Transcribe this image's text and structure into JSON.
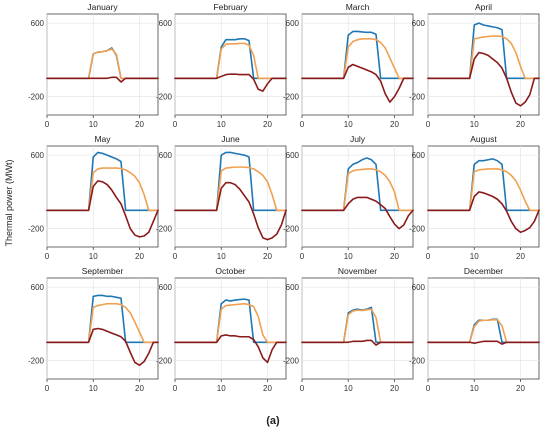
{
  "chart_data": {
    "type": "line",
    "ylabel": "Thermal power (MWt)",
    "caption": "(a)",
    "xlim": [
      0,
      24
    ],
    "ylim": [
      -400,
      700
    ],
    "x_ticks": [
      0,
      10,
      20
    ],
    "y_ticks_labeled": [
      600,
      -200
    ],
    "series_colors": [
      "#1f77b4",
      "#f0a050",
      "#8b1a1a"
    ],
    "hours": [
      0,
      1,
      2,
      3,
      4,
      5,
      6,
      7,
      8,
      9,
      10,
      11,
      12,
      13,
      14,
      15,
      16,
      17,
      18,
      19,
      20,
      21,
      22,
      23,
      24
    ],
    "panels": [
      {
        "month": "January",
        "series": [
          {
            "values": [
              0,
              0,
              0,
              0,
              0,
              0,
              0,
              0,
              0,
              0,
              265,
              285,
              290,
              300,
              330,
              250,
              0,
              0,
              0,
              0,
              0,
              0,
              0,
              0,
              0
            ]
          },
          {
            "values": [
              0,
              0,
              0,
              0,
              0,
              0,
              0,
              0,
              0,
              0,
              265,
              285,
              290,
              300,
              320,
              260,
              0,
              0,
              0,
              0,
              0,
              0,
              0,
              0,
              0
            ]
          },
          {
            "values": [
              0,
              0,
              0,
              0,
              0,
              0,
              0,
              0,
              0,
              0,
              0,
              0,
              0,
              0,
              10,
              10,
              -40,
              0,
              0,
              0,
              0,
              0,
              0,
              0,
              0
            ]
          }
        ]
      },
      {
        "month": "February",
        "series": [
          {
            "values": [
              0,
              0,
              0,
              0,
              0,
              0,
              0,
              0,
              0,
              0,
              340,
              420,
              420,
              420,
              430,
              430,
              410,
              0,
              0,
              0,
              0,
              0,
              0,
              0,
              0
            ]
          },
          {
            "values": [
              0,
              0,
              0,
              0,
              0,
              0,
              0,
              0,
              0,
              0,
              320,
              370,
              375,
              375,
              380,
              380,
              360,
              250,
              0,
              0,
              0,
              0,
              0,
              0,
              0
            ]
          },
          {
            "values": [
              0,
              0,
              0,
              0,
              0,
              0,
              0,
              0,
              0,
              0,
              20,
              40,
              45,
              45,
              40,
              40,
              40,
              -10,
              -120,
              -140,
              -60,
              0,
              0,
              0,
              0
            ]
          }
        ]
      },
      {
        "month": "March",
        "series": [
          {
            "values": [
              0,
              0,
              0,
              0,
              0,
              0,
              0,
              0,
              0,
              0,
              470,
              510,
              510,
              505,
              500,
              500,
              480,
              0,
              0,
              0,
              0,
              0,
              0,
              0,
              0
            ]
          },
          {
            "values": [
              0,
              0,
              0,
              0,
              0,
              0,
              0,
              0,
              0,
              0,
              340,
              400,
              420,
              430,
              430,
              430,
              420,
              390,
              330,
              220,
              110,
              0,
              0,
              0,
              0
            ]
          },
          {
            "values": [
              0,
              0,
              0,
              0,
              0,
              0,
              0,
              0,
              0,
              0,
              120,
              150,
              130,
              110,
              90,
              70,
              40,
              -30,
              -170,
              -260,
              -200,
              -110,
              0,
              0,
              0
            ]
          }
        ]
      },
      {
        "month": "April",
        "series": [
          {
            "values": [
              0,
              0,
              0,
              0,
              0,
              0,
              0,
              0,
              0,
              0,
              580,
              600,
              580,
              570,
              560,
              550,
              530,
              0,
              0,
              0,
              0,
              0,
              0,
              0,
              0
            ]
          },
          {
            "values": [
              0,
              0,
              0,
              0,
              0,
              0,
              0,
              0,
              0,
              0,
              430,
              440,
              450,
              455,
              460,
              460,
              455,
              430,
              380,
              280,
              130,
              0,
              0,
              0,
              0
            ]
          },
          {
            "values": [
              0,
              0,
              0,
              0,
              0,
              0,
              0,
              0,
              0,
              0,
              210,
              280,
              270,
              250,
              210,
              170,
              110,
              0,
              -150,
              -270,
              -300,
              -260,
              -180,
              0,
              0
            ]
          }
        ]
      },
      {
        "month": "May",
        "series": [
          {
            "values": [
              0,
              0,
              0,
              0,
              0,
              0,
              0,
              0,
              0,
              0,
              580,
              630,
              620,
              600,
              580,
              560,
              530,
              0,
              0,
              0,
              0,
              0,
              0,
              0,
              0
            ]
          },
          {
            "values": [
              0,
              0,
              0,
              0,
              0,
              0,
              0,
              0,
              0,
              0,
              410,
              450,
              460,
              460,
              460,
              460,
              455,
              440,
              410,
              370,
              300,
              170,
              0,
              0,
              0
            ]
          },
          {
            "values": [
              0,
              0,
              0,
              0,
              0,
              0,
              0,
              0,
              0,
              0,
              260,
              320,
              310,
              280,
              220,
              140,
              70,
              -60,
              -200,
              -270,
              -290,
              -280,
              -240,
              -120,
              0
            ]
          }
        ]
      },
      {
        "month": "June",
        "series": [
          {
            "values": [
              0,
              0,
              0,
              0,
              0,
              0,
              0,
              0,
              0,
              0,
              600,
              630,
              630,
              620,
              610,
              600,
              580,
              0,
              0,
              0,
              0,
              0,
              0,
              0,
              0
            ]
          },
          {
            "values": [
              0,
              0,
              0,
              0,
              0,
              0,
              0,
              0,
              0,
              0,
              430,
              460,
              465,
              470,
              470,
              470,
              465,
              450,
              420,
              380,
              310,
              170,
              0,
              0,
              0
            ]
          },
          {
            "values": [
              0,
              0,
              0,
              0,
              0,
              0,
              0,
              0,
              0,
              0,
              240,
              300,
              300,
              280,
              230,
              160,
              90,
              -40,
              -190,
              -300,
              -320,
              -300,
              -260,
              -160,
              0
            ]
          }
        ]
      },
      {
        "month": "July",
        "series": [
          {
            "values": [
              0,
              0,
              0,
              0,
              0,
              0,
              0,
              0,
              0,
              0,
              450,
              500,
              520,
              550,
              570,
              550,
              500,
              0,
              0,
              0,
              0,
              0,
              0,
              0,
              0
            ]
          },
          {
            "values": [
              0,
              0,
              0,
              0,
              0,
              0,
              0,
              0,
              0,
              0,
              400,
              430,
              440,
              445,
              450,
              450,
              440,
              420,
              380,
              310,
              200,
              0,
              0,
              0,
              0
            ]
          },
          {
            "values": [
              0,
              0,
              0,
              0,
              0,
              0,
              0,
              0,
              0,
              0,
              70,
              120,
              140,
              140,
              140,
              120,
              100,
              60,
              20,
              -70,
              -150,
              -200,
              -160,
              -60,
              0
            ]
          }
        ]
      },
      {
        "month": "August",
        "series": [
          {
            "values": [
              0,
              0,
              0,
              0,
              0,
              0,
              0,
              0,
              0,
              0,
              500,
              540,
              540,
              550,
              560,
              540,
              500,
              0,
              0,
              0,
              0,
              0,
              0,
              0,
              0
            ]
          },
          {
            "values": [
              0,
              0,
              0,
              0,
              0,
              0,
              0,
              0,
              0,
              0,
              420,
              440,
              445,
              450,
              450,
              450,
              440,
              420,
              380,
              320,
              220,
              100,
              0,
              0,
              0
            ]
          },
          {
            "values": [
              0,
              0,
              0,
              0,
              0,
              0,
              0,
              0,
              0,
              0,
              150,
              200,
              190,
              170,
              150,
              120,
              70,
              -10,
              -120,
              -200,
              -240,
              -220,
              -190,
              -120,
              0
            ]
          }
        ]
      },
      {
        "month": "September",
        "series": [
          {
            "values": [
              0,
              0,
              0,
              0,
              0,
              0,
              0,
              0,
              0,
              0,
              500,
              510,
              510,
              500,
              500,
              490,
              480,
              0,
              0,
              0,
              0,
              0,
              0,
              0,
              0
            ]
          },
          {
            "values": [
              0,
              0,
              0,
              0,
              0,
              0,
              0,
              0,
              0,
              0,
              380,
              400,
              410,
              420,
              420,
              420,
              410,
              380,
              320,
              220,
              110,
              0,
              0,
              0,
              0
            ]
          },
          {
            "values": [
              0,
              0,
              0,
              0,
              0,
              0,
              0,
              0,
              0,
              0,
              140,
              150,
              140,
              120,
              100,
              80,
              60,
              10,
              -110,
              -220,
              -250,
              -210,
              -120,
              0,
              0
            ]
          }
        ]
      },
      {
        "month": "October",
        "series": [
          {
            "values": [
              0,
              0,
              0,
              0,
              0,
              0,
              0,
              0,
              0,
              0,
              420,
              460,
              450,
              460,
              465,
              470,
              460,
              0,
              0,
              0,
              0,
              0,
              0,
              0,
              0
            ]
          },
          {
            "values": [
              0,
              0,
              0,
              0,
              0,
              0,
              0,
              0,
              0,
              0,
              360,
              400,
              405,
              410,
              415,
              420,
              410,
              390,
              280,
              80,
              0,
              0,
              0,
              0,
              0
            ]
          },
          {
            "values": [
              0,
              0,
              0,
              0,
              0,
              0,
              0,
              0,
              0,
              0,
              70,
              80,
              70,
              70,
              60,
              60,
              60,
              30,
              -50,
              -170,
              -220,
              -80,
              0,
              0,
              0
            ]
          }
        ]
      },
      {
        "month": "November",
        "series": [
          {
            "values": [
              0,
              0,
              0,
              0,
              0,
              0,
              0,
              0,
              0,
              0,
              320,
              350,
              360,
              350,
              360,
              380,
              0,
              0,
              0,
              0,
              0,
              0,
              0,
              0,
              0
            ]
          },
          {
            "values": [
              0,
              0,
              0,
              0,
              0,
              0,
              0,
              0,
              0,
              0,
              300,
              340,
              350,
              345,
              355,
              360,
              270,
              0,
              0,
              0,
              0,
              0,
              0,
              0,
              0
            ]
          },
          {
            "values": [
              0,
              0,
              0,
              0,
              0,
              0,
              0,
              0,
              0,
              0,
              0,
              10,
              10,
              10,
              20,
              20,
              -30,
              0,
              0,
              0,
              0,
              0,
              0,
              0,
              0
            ]
          }
        ]
      },
      {
        "month": "December",
        "series": [
          {
            "values": [
              0,
              0,
              0,
              0,
              0,
              0,
              0,
              0,
              0,
              0,
              190,
              240,
              240,
              240,
              250,
              250,
              0,
              0,
              0,
              0,
              0,
              0,
              0,
              0,
              0
            ]
          },
          {
            "values": [
              0,
              0,
              0,
              0,
              0,
              0,
              0,
              0,
              0,
              0,
              170,
              230,
              240,
              240,
              245,
              245,
              180,
              0,
              0,
              0,
              0,
              0,
              0,
              0,
              0
            ]
          },
          {
            "values": [
              0,
              0,
              0,
              0,
              0,
              0,
              0,
              0,
              0,
              0,
              -10,
              0,
              10,
              10,
              10,
              10,
              -20,
              0,
              0,
              0,
              0,
              0,
              0,
              0,
              0
            ]
          }
        ]
      }
    ]
  }
}
